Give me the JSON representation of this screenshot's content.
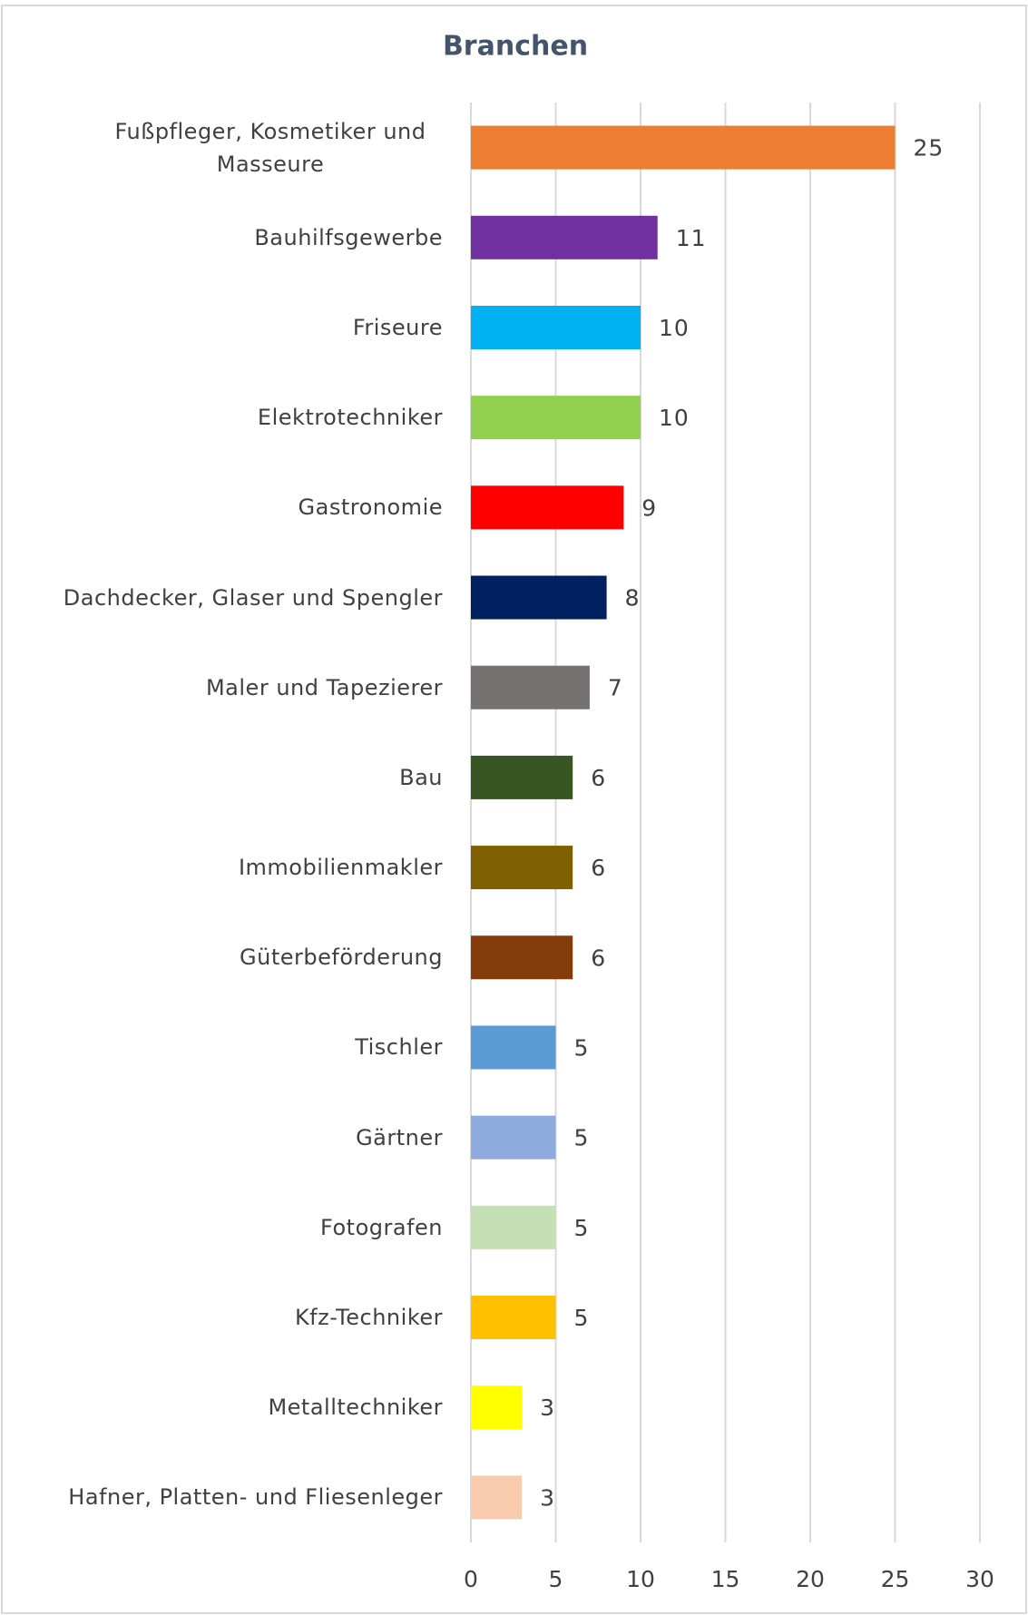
{
  "chart_data": {
    "type": "barh",
    "title": "Branchen",
    "categories": [
      "Fußpfleger, Kosmetiker und Masseure",
      "Bauhilfsgewerbe",
      "Friseure",
      "Elektrotechniker",
      "Gastronomie",
      "Dachdecker, Glaser und Spengler",
      "Maler und Tapezierer",
      "Bau",
      "Immobilienmakler",
      "Güterbeförderung",
      "Tischler",
      "Gärtner",
      "Fotografen",
      "Kfz-Techniker",
      "Metalltechniker",
      "Hafner, Platten- und Fliesenleger"
    ],
    "values": [
      25,
      11,
      10,
      10,
      9,
      8,
      7,
      6,
      6,
      6,
      5,
      5,
      5,
      5,
      3,
      3
    ],
    "colors": [
      "#ed7d31",
      "#7030a0",
      "#00b0f0",
      "#92d050",
      "#ff0000",
      "#002060",
      "#767171",
      "#375623",
      "#7f6000",
      "#843c0c",
      "#5b9bd5",
      "#8faadc",
      "#c5e0b4",
      "#ffc000",
      "#ffff00",
      "#f8cbad"
    ],
    "xlim": [
      0,
      30
    ],
    "xticks": [
      0,
      5,
      10,
      15,
      20,
      25,
      30
    ],
    "grid": true
  }
}
